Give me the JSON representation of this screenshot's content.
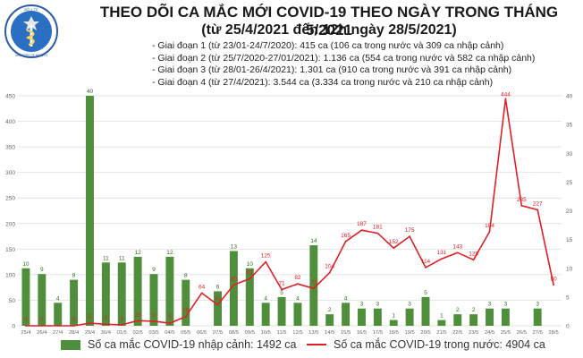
{
  "header": {
    "logo_text": "BỘ Y TẾ — MINISTRY OF HEALTH",
    "title": "THEO DÕI CA MẮC MỚI COVID-19 THEO NGÀY TRONG THÁNG 5/2021",
    "subtitle": "(từ 25/4/2021 đến 12h ngày 28/5/2021)"
  },
  "phases": [
    "Giai đoạn 1 (từ 23/01-24/7/2020): 415 ca (106 ca trong nước và 309 ca nhập cảnh)",
    "Giai đoạn 2 (từ 25/7/2020-27/01/2021): 1.136 ca (554 ca trong nước và 582 ca nhập cảnh)",
    "Giai đoạn 3 (từ 28/01-26/4/2021): 1.301 ca (910 ca trong nước và 391 ca nhập cảnh)",
    "Giai đoạn 4 (từ 27/4/2021): 3.544 ca (3.334 ca trong nước và 210 ca nhập cảnh)"
  ],
  "legend": {
    "bar": "Số ca mắc COVID-19 nhập cảnh: 1492 ca",
    "line": "Số ca mắc COVID-19 trong nước: 4904 ca"
  },
  "colors": {
    "bar": "#4f8f3c",
    "line": "#e01f26",
    "grid": "#d9d9d9",
    "axis_text": "#666666"
  },
  "chart_data": {
    "type": "bar+line",
    "categories": [
      "25/4",
      "26/4",
      "27/4",
      "28/4",
      "29/4",
      "30/4",
      "01/5",
      "02/5",
      "03/5",
      "04/5",
      "05/5",
      "06/5",
      "07/5",
      "08/5",
      "09/5",
      "10/5",
      "11/5",
      "12/5",
      "13/5",
      "14/5",
      "15/5",
      "16/5",
      "17/5",
      "18/5",
      "19/5",
      "20/5",
      "21/5",
      "22/5",
      "23/5",
      "24/5",
      "25/5",
      "26/5",
      "27/5",
      "28/5"
    ],
    "series": [
      {
        "name": "Số ca mắc COVID-19 nhập cảnh: 1492 ca",
        "type": "bar",
        "axis": "right",
        "values": [
          10,
          9,
          4,
          8,
          40,
          11,
          11,
          12,
          9,
          12,
          8,
          null,
          6,
          13,
          10,
          4,
          5,
          4,
          14,
          2,
          4,
          3,
          3,
          1,
          3,
          5,
          1,
          2,
          2,
          3,
          3,
          null,
          3,
          null
        ]
      },
      {
        "name": "Số ca mắc COVID-19 trong nước: 4904 ca",
        "type": "line",
        "axis": "left",
        "values": [
          0,
          0,
          0,
          0,
          5,
          3,
          2,
          10,
          9,
          5,
          18,
          64,
          41,
          80,
          92,
          125,
          71,
          82,
          73,
          104,
          165,
          187,
          181,
          152,
          175,
          114,
          131,
          143,
          129,
          184,
          444,
          235,
          227,
          80
        ],
        "labels_shown": [
          0,
          0,
          null,
          0,
          5,
          3,
          2,
          10,
          9,
          5,
          18,
          64,
          41,
          80,
          92,
          125,
          71,
          82,
          73,
          104,
          165,
          187,
          181,
          152,
          175,
          114,
          131,
          143,
          129,
          184,
          444,
          235,
          227,
          80
        ]
      }
    ],
    "y_left": {
      "min": 0,
      "max": 450,
      "ticks": [
        0,
        50,
        100,
        150,
        200,
        250,
        300,
        350,
        400,
        450
      ]
    },
    "y_right": {
      "min": 0,
      "max": 40,
      "ticks": [
        0,
        5,
        10,
        15,
        20,
        25,
        30,
        35,
        40
      ]
    },
    "grid": true,
    "legend_position": "bottom"
  }
}
